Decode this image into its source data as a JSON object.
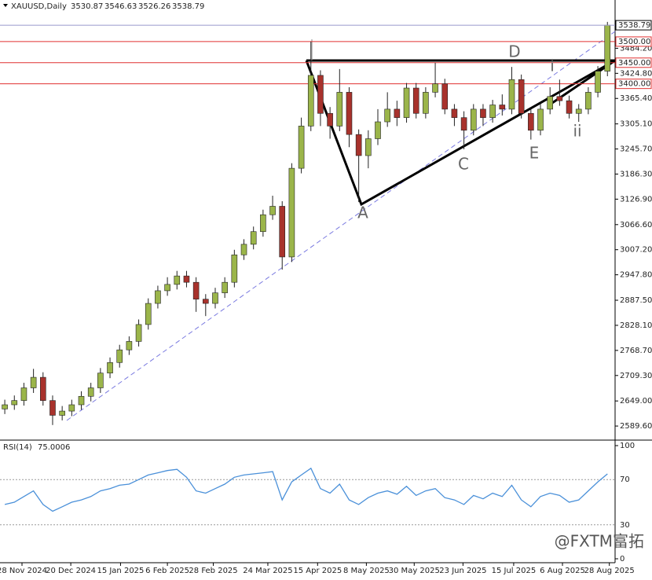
{
  "chart_data": {
    "type": "candlestick",
    "title": "XAUUSD,Daily",
    "quote": [
      3530.87,
      3546.63,
      3526.26,
      3538.79
    ],
    "open": [
      2630,
      2640,
      2650,
      2680,
      2705,
      2650,
      2615,
      2625,
      2640,
      2660,
      2680,
      2715,
      2740,
      2770,
      2790,
      2830,
      2880,
      2910,
      2925,
      2945,
      2930,
      2890,
      2880,
      2905,
      2930,
      2995,
      3020,
      3050,
      3090,
      3110,
      2990,
      3200,
      3300,
      3420,
      3330,
      3300,
      3380,
      3280,
      3230,
      3270,
      3310,
      3340,
      3320,
      3390,
      3330,
      3380,
      3400,
      3340,
      3320,
      3290,
      3340,
      3320,
      3350,
      3340,
      3410,
      3330,
      3290,
      3340,
      3370,
      3360,
      3330,
      3340,
      3380,
      3430
    ],
    "high": [
      2652,
      2662,
      2692,
      2725,
      2717,
      2662,
      2637,
      2652,
      2672,
      2692,
      2727,
      2752,
      2782,
      2802,
      2842,
      2892,
      2922,
      2942,
      2957,
      2957,
      2942,
      2902,
      2917,
      2942,
      3007,
      3032,
      3062,
      3102,
      3135,
      3122,
      3212,
      3320,
      3500,
      3432,
      3345,
      3435,
      3392,
      3292,
      3290,
      3340,
      3380,
      3360,
      3402,
      3402,
      3392,
      3450,
      3412,
      3352,
      3335,
      3352,
      3352,
      3362,
      3375,
      3440,
      3422,
      3342,
      3352,
      3392,
      3410,
      3372,
      3352,
      3392,
      3442,
      3546.63
    ],
    "low": [
      2618,
      2628,
      2638,
      2668,
      2638,
      2592,
      2603,
      2613,
      2628,
      2648,
      2668,
      2703,
      2728,
      2758,
      2778,
      2818,
      2868,
      2898,
      2913,
      2918,
      2860,
      2850,
      2868,
      2893,
      2918,
      2983,
      3008,
      3038,
      3078,
      2960,
      2978,
      3188,
      3288,
      3300,
      3270,
      3288,
      3250,
      3120,
      3200,
      3255,
      3298,
      3300,
      3308,
      3318,
      3318,
      3368,
      3328,
      3300,
      3245,
      3278,
      3300,
      3308,
      3325,
      3328,
      3318,
      3268,
      3278,
      3328,
      3348,
      3318,
      3310,
      3328,
      3368,
      3418
    ],
    "close": [
      2640,
      2650,
      2680,
      2705,
      2650,
      2615,
      2625,
      2640,
      2660,
      2680,
      2715,
      2740,
      2770,
      2790,
      2830,
      2880,
      2910,
      2925,
      2945,
      2930,
      2890,
      2880,
      2905,
      2930,
      2995,
      3020,
      3050,
      3090,
      3110,
      2990,
      3200,
      3300,
      3420,
      3330,
      3300,
      3380,
      3280,
      3230,
      3270,
      3310,
      3340,
      3320,
      3390,
      3330,
      3380,
      3400,
      3340,
      3320,
      3290,
      3340,
      3320,
      3350,
      3340,
      3410,
      3330,
      3290,
      3340,
      3370,
      3360,
      3330,
      3340,
      3380,
      3430,
      3538.79
    ],
    "up_color": "#9bb54a",
    "down_color": "#a8322c",
    "xlim": [
      -0.5,
      63.8
    ],
    "xticks": [
      {
        "value": 1.8,
        "label": "28 Nov 2024"
      },
      {
        "value": 6.9,
        "label": "20 Dec 2024"
      },
      {
        "value": 12.1,
        "label": "15 Jan 2025"
      },
      {
        "value": 17,
        "label": "6 Feb 2025"
      },
      {
        "value": 21.8,
        "label": "28 Feb 2025"
      },
      {
        "value": 27.5,
        "label": "24 Mar 2025"
      },
      {
        "value": 32.7,
        "label": "15 Apr 2025"
      },
      {
        "value": 37.8,
        "label": "8 May 2025"
      },
      {
        "value": 42.8,
        "label": "30 May 2025"
      },
      {
        "value": 47.9,
        "label": "23 Jun 2025"
      },
      {
        "value": 53.2,
        "label": "15 Jul 2025"
      },
      {
        "value": 58.3,
        "label": "6 Aug 2025"
      },
      {
        "value": 63.2,
        "label": "28 Aug 2025"
      }
    ],
    "ylim": [
      2560,
      3565
    ],
    "yticks": [
      {
        "value": 2589.6,
        "label": "2589.60"
      },
      {
        "value": 2649,
        "label": "2649.00"
      },
      {
        "value": 2709.3,
        "label": "2709.30"
      },
      {
        "value": 2768.7,
        "label": "2768.70"
      },
      {
        "value": 2828.1,
        "label": "2828.10"
      },
      {
        "value": 2887.5,
        "label": "2887.50"
      },
      {
        "value": 2947.8,
        "label": "2947.80"
      },
      {
        "value": 3007.2,
        "label": "3007.20"
      },
      {
        "value": 3066.6,
        "label": "3066.60"
      },
      {
        "value": 3126.9,
        "label": "3126.90"
      },
      {
        "value": 3186.3,
        "label": "3186.30"
      },
      {
        "value": 3245.7,
        "label": "3245.70"
      },
      {
        "value": 3305.1,
        "label": "3305.10"
      },
      {
        "value": 3365.4,
        "label": "3365.40"
      },
      {
        "value": 3424.8,
        "label": "3424.80"
      },
      {
        "value": 3484.2,
        "label": "3484.20"
      }
    ],
    "levels": [
      {
        "value": 3500,
        "label": "3500.00"
      },
      {
        "value": 3450,
        "label": "3450.00"
      },
      {
        "value": 3400,
        "label": "3400.00"
      }
    ],
    "level_color": "#e03030",
    "annotations": [
      "A",
      "C",
      "D",
      "E",
      "i",
      "ii"
    ],
    "rsi": {
      "label": "RSI(14)",
      "ylim": [
        0,
        100
      ],
      "yticks": [
        100,
        70,
        30,
        0
      ],
      "color": "#4a90d9",
      "values": [
        48,
        50,
        55,
        60,
        48,
        42,
        46,
        50,
        52,
        55,
        60,
        62,
        65,
        66,
        70,
        74,
        76,
        78,
        79,
        72,
        60,
        58,
        62,
        66,
        72,
        74,
        75,
        76,
        77,
        52,
        68,
        74,
        80,
        62,
        58,
        66,
        52,
        48,
        54,
        58,
        60,
        57,
        64,
        56,
        60,
        62,
        54,
        52,
        48,
        56,
        53,
        58,
        55,
        65,
        52,
        46,
        55,
        58,
        56,
        50,
        52,
        60,
        68,
        75.0006
      ]
    },
    "watermark": "@FXTM富拓"
  }
}
